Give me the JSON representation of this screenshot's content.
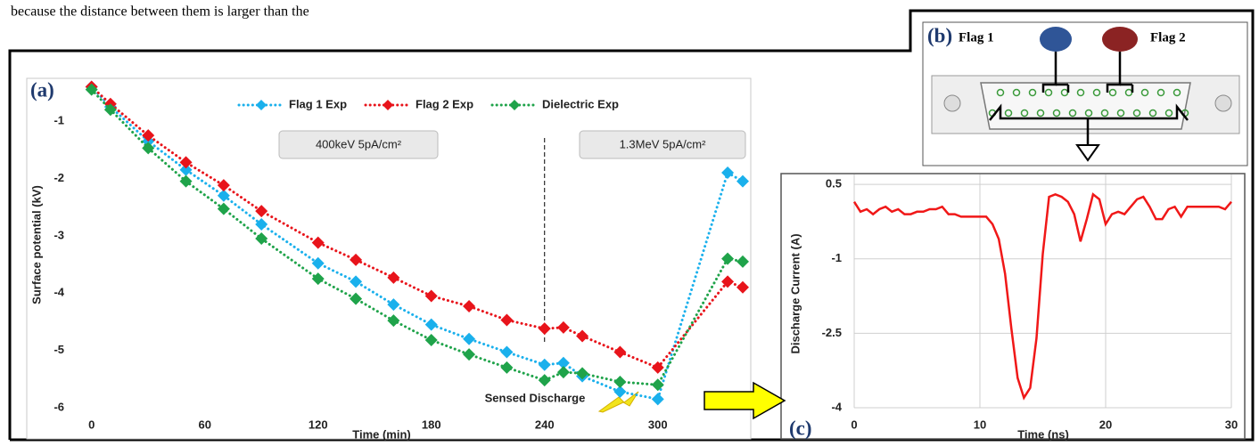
{
  "text": {
    "body": "because the distance between them is larger than the"
  },
  "chart_data": [
    {
      "type": "line",
      "panel_label": "(a)",
      "x_label": "Time (min)",
      "y_label": "Surface potential (kV)",
      "x": [
        0,
        10,
        30,
        50,
        70,
        90,
        120,
        140,
        160,
        180,
        200,
        220,
        240,
        250,
        260,
        280,
        300,
        337,
        345
      ],
      "series": [
        {
          "name": "Flag 1 Exp",
          "color": "#1ab0ec",
          "values": [
            -0.4,
            -0.75,
            -1.35,
            -1.85,
            -2.3,
            -2.8,
            -3.48,
            -3.8,
            -4.2,
            -4.55,
            -4.8,
            -5.03,
            -5.25,
            -5.22,
            -5.45,
            -5.72,
            -5.85,
            -1.9,
            -2.05
          ]
        },
        {
          "name": "Flag 2  Exp",
          "color": "#e8141b",
          "values": [
            -0.4,
            -0.7,
            -1.25,
            -1.72,
            -2.12,
            -2.57,
            -3.12,
            -3.42,
            -3.73,
            -4.05,
            -4.23,
            -4.47,
            -4.62,
            -4.6,
            -4.75,
            -5.03,
            -5.3,
            -3.8,
            -3.9
          ]
        },
        {
          "name": "Dielectric Exp",
          "color": "#1fa34a",
          "values": [
            -0.45,
            -0.8,
            -1.47,
            -2.05,
            -2.53,
            -3.05,
            -3.75,
            -4.1,
            -4.48,
            -4.82,
            -5.07,
            -5.3,
            -5.52,
            -5.38,
            -5.4,
            -5.55,
            -5.6,
            -3.4,
            -3.45
          ]
        }
      ],
      "marker": "diamond",
      "line_style": "dotted",
      "legend": "top",
      "grid": false,
      "xlim": [
        -6,
        345
      ],
      "xticks": [
        0,
        60,
        120,
        180,
        240,
        300
      ],
      "ylim": [
        -6,
        -0.3
      ],
      "yticks": [
        -1,
        -2,
        -3,
        -4,
        -5,
        -6
      ],
      "vline": 240,
      "annotations": [
        "400keV 5pA/cm²",
        "1.3MeV 5pA/cm²",
        "Sensed Discharge"
      ]
    },
    {
      "type": "line",
      "panel_label": "(c)",
      "x_label": "Time (ns)",
      "y_label": "Discharge Current (A)",
      "x": [
        0,
        0.5,
        1,
        1.5,
        2,
        2.5,
        3,
        3.5,
        4,
        4.5,
        5,
        5.5,
        6,
        6.5,
        7,
        7.5,
        8,
        8.5,
        9,
        9.5,
        10,
        10.5,
        11,
        11.5,
        12,
        12.5,
        13,
        13.5,
        14,
        14.5,
        15,
        15.5,
        16,
        16.5,
        17,
        17.5,
        18,
        18.5,
        19,
        19.5,
        20,
        20.5,
        21,
        21.5,
        22,
        22.5,
        23,
        23.5,
        24,
        24.5,
        25,
        25.5,
        26,
        26.5,
        27,
        27.5,
        28,
        28.5,
        29,
        29.5,
        30
      ],
      "series": [
        {
          "name": null,
          "color": "#f01818",
          "values": [
            0.15,
            -0.05,
            0.0,
            -0.1,
            0.0,
            0.05,
            -0.05,
            0.0,
            -0.1,
            -0.1,
            -0.05,
            -0.05,
            0.0,
            0.0,
            0.05,
            -0.1,
            -0.1,
            -0.15,
            -0.15,
            -0.15,
            -0.15,
            -0.15,
            -0.3,
            -0.6,
            -1.3,
            -2.4,
            -3.4,
            -3.8,
            -3.6,
            -2.6,
            -0.9,
            0.25,
            0.3,
            0.25,
            0.15,
            -0.1,
            -0.65,
            -0.2,
            0.3,
            0.2,
            -0.3,
            -0.1,
            -0.05,
            -0.1,
            0.05,
            0.2,
            0.25,
            0.05,
            -0.2,
            -0.2,
            0.0,
            0.05,
            -0.15,
            0.05,
            0.05,
            0.05,
            0.05,
            0.05,
            0.05,
            0.0,
            0.15
          ]
        }
      ],
      "marker": null,
      "line_style": "solid",
      "grid": true,
      "xlim": [
        0,
        30
      ],
      "xticks": [
        0,
        10,
        20,
        30
      ],
      "ylim": [
        -4,
        0.7
      ],
      "yticks": [
        0.5,
        -1,
        -2.5,
        -4
      ]
    }
  ],
  "diagram": {
    "panel_label": "(b)",
    "flags": [
      "Flag 1",
      "Flag 2"
    ]
  }
}
